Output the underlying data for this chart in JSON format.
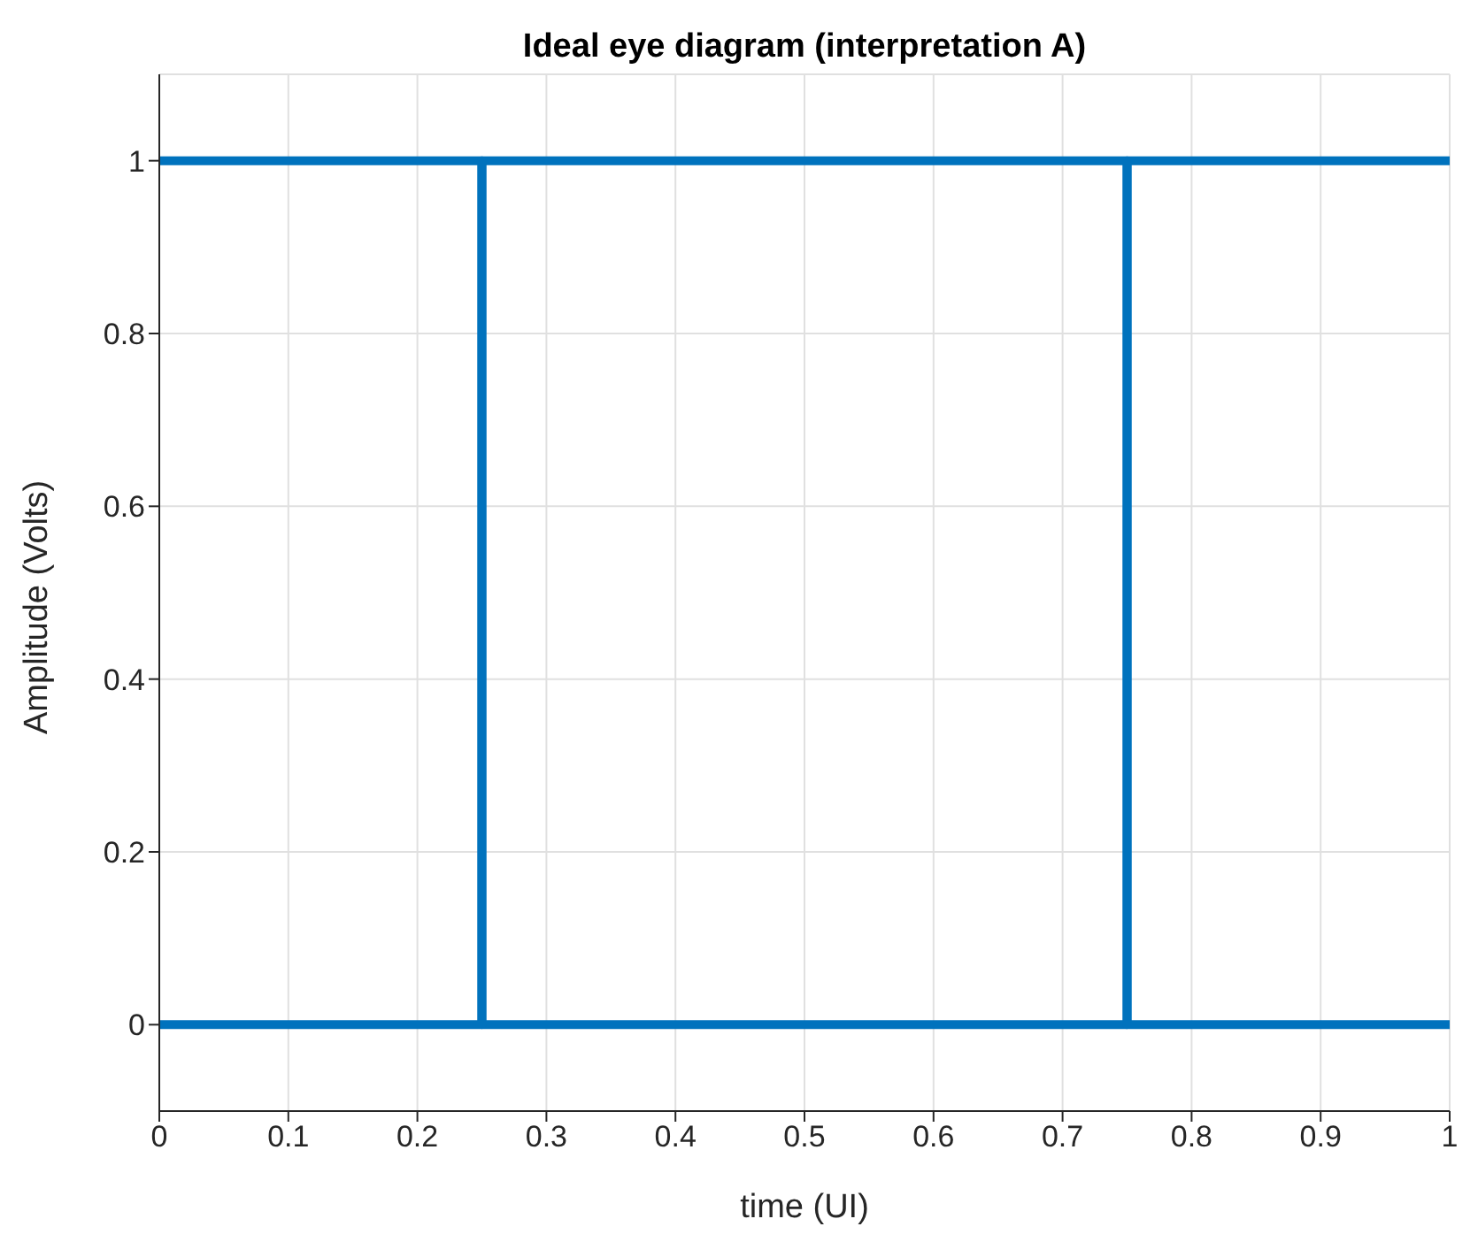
{
  "chart_data": {
    "type": "line",
    "title": "Ideal eye diagram (interpretation A)",
    "xlabel": "time (UI)",
    "ylabel": "Amplitude (Volts)",
    "series": [
      {
        "color": "#0072bd",
        "x": [
          0,
          0.25,
          0.25,
          0.75,
          0.75,
          1
        ],
        "values": [
          1,
          1,
          0,
          0,
          1,
          1
        ]
      },
      {
        "color": "#0072bd",
        "x": [
          0,
          0.25,
          0.25,
          0.75,
          0.75,
          1
        ],
        "values": [
          0,
          0,
          1,
          1,
          0,
          0
        ]
      }
    ],
    "xlim": [
      0,
      1
    ],
    "xticks": [
      0,
      0.1,
      0.2,
      0.3,
      0.4,
      0.5,
      0.6,
      0.7,
      0.8,
      0.9,
      1
    ],
    "ylim": [
      -0.1,
      1.1
    ],
    "yticks": [
      0,
      0.2,
      0.4,
      0.6,
      0.8,
      1
    ],
    "grid": true,
    "line_style": "solid"
  }
}
